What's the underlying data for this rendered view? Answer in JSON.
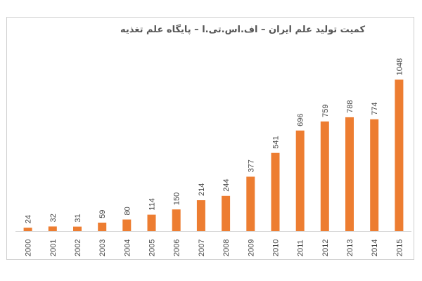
{
  "chart_data": {
    "type": "bar",
    "title": "کمیت تولید علم ایران – اف.اس.تی.ا – پایگاه علم تغذیه",
    "xlabel": "",
    "ylabel": "",
    "categories": [
      "2000",
      "2001",
      "2002",
      "2003",
      "2004",
      "2005",
      "2006",
      "2007",
      "2008",
      "2009",
      "2010",
      "2011",
      "2012",
      "2013",
      "2014",
      "2015"
    ],
    "values": [
      24,
      32,
      31,
      59,
      80,
      114,
      150,
      214,
      244,
      377,
      541,
      696,
      759,
      788,
      774,
      1048
    ],
    "value_labels": [
      "24",
      "32",
      "31",
      "59",
      "80",
      "114",
      "150",
      "214",
      "244",
      "377",
      "541",
      "696",
      "759",
      "788",
      "774",
      "1048"
    ],
    "ylim": [
      0,
      1100
    ],
    "grid": false,
    "legend": "none",
    "colors": {
      "bar": "#ED7D31",
      "axis": "#d9d9d9",
      "text": "#444444",
      "frame": "#cfcfcf"
    }
  }
}
